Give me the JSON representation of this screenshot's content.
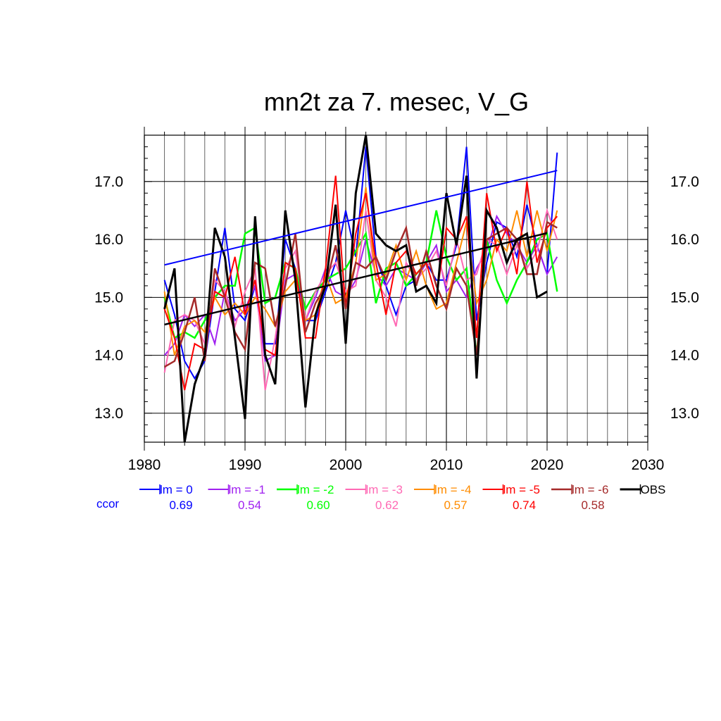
{
  "chart_data": {
    "type": "line",
    "title": "mn2t za 7. mesec, V_G",
    "xlabel": "",
    "ylabel": "",
    "xlim": [
      1980,
      2030
    ],
    "ylim": [
      12.5,
      17.8
    ],
    "x_ticks": [
      1980,
      1990,
      2000,
      2010,
      2020,
      2030
    ],
    "x_tick_labels": [
      "1980",
      "1990",
      "2000",
      "2010",
      "2020",
      "2030"
    ],
    "y_ticks": [
      13.0,
      14.0,
      15.0,
      16.0,
      17.0
    ],
    "y_tick_labels": [
      "13.0",
      "14.0",
      "15.0",
      "16.0",
      "17.0"
    ],
    "grid": true,
    "legend_position": "bottom",
    "ccor_label": "ccor",
    "x": [
      1982,
      1983,
      1984,
      1985,
      1986,
      1987,
      1988,
      1989,
      1990,
      1991,
      1992,
      1993,
      1994,
      1995,
      1996,
      1997,
      1998,
      1999,
      2000,
      2001,
      2002,
      2003,
      2004,
      2005,
      2006,
      2007,
      2008,
      2009,
      2010,
      2011,
      2012,
      2013,
      2014,
      2015,
      2016,
      2017,
      2018,
      2019,
      2020,
      2021
    ],
    "series": [
      {
        "name": "lm = 0",
        "ccor": "0.69",
        "color": "#0000ff",
        "width": 2,
        "values": [
          15.3,
          14.7,
          13.9,
          13.6,
          13.9,
          15.1,
          16.2,
          14.8,
          14.6,
          15.2,
          14.2,
          14.2,
          16.0,
          15.5,
          14.6,
          14.6,
          15.1,
          15.6,
          16.5,
          15.7,
          17.6,
          15.7,
          15.2,
          14.7,
          15.2,
          15.3,
          15.6,
          15.3,
          15.3,
          15.9,
          17.6,
          14.6,
          15.6,
          16.3,
          16.2,
          15.7,
          16.6,
          15.9,
          15.4,
          17.5
        ]
      },
      {
        "name": "lm = -1",
        "ccor": "0.54",
        "color": "#a020f0",
        "width": 2,
        "values": [
          14.0,
          14.2,
          14.7,
          14.5,
          14.7,
          14.2,
          15.1,
          14.6,
          14.8,
          15.2,
          13.9,
          14.0,
          15.3,
          15.4,
          14.6,
          15.0,
          15.5,
          15.1,
          15.0,
          15.3,
          16.0,
          15.4,
          15.2,
          15.5,
          15.4,
          15.3,
          15.6,
          15.9,
          15.1,
          15.3,
          15.0,
          15.5,
          15.8,
          16.4,
          16.1,
          15.9,
          15.6,
          15.9,
          15.4,
          15.7
        ]
      },
      {
        "name": "lm = -2",
        "ccor": "0.60",
        "color": "#00ff00",
        "width": 2.5,
        "values": [
          15.0,
          14.3,
          14.4,
          14.3,
          14.6,
          15.0,
          15.2,
          15.2,
          16.1,
          16.2,
          14.9,
          15.0,
          15.6,
          15.5,
          14.8,
          15.1,
          15.3,
          15.4,
          15.5,
          15.8,
          16.1,
          14.9,
          15.5,
          15.6,
          15.2,
          15.4,
          15.6,
          16.5,
          15.7,
          15.3,
          15.5,
          14.0,
          16.0,
          15.3,
          14.9,
          15.3,
          15.6,
          16.0,
          16.1,
          15.1
        ]
      },
      {
        "name": "lm = -3",
        "ccor": "0.62",
        "color": "#ff69b4",
        "width": 2,
        "values": [
          13.7,
          14.6,
          14.7,
          14.6,
          14.2,
          15.3,
          15.1,
          14.5,
          15.1,
          15.5,
          13.4,
          14.3,
          15.5,
          15.8,
          14.6,
          15.1,
          15.4,
          15.6,
          15.1,
          15.2,
          16.5,
          15.3,
          15.0,
          14.5,
          15.6,
          15.3,
          15.5,
          15.8,
          15.2,
          16.0,
          15.3,
          15.4,
          16.0,
          15.9,
          15.4,
          15.9,
          15.5,
          15.8,
          16.5,
          16.0
        ]
      },
      {
        "name": "lm = -4",
        "ccor": "0.57",
        "color": "#ff8c00",
        "width": 2,
        "values": [
          15.1,
          14.0,
          14.5,
          14.6,
          14.4,
          15.0,
          14.7,
          14.9,
          14.7,
          15.0,
          14.8,
          14.5,
          15.1,
          15.3,
          14.6,
          14.7,
          15.4,
          14.9,
          15.0,
          15.6,
          16.9,
          15.3,
          15.4,
          15.9,
          15.3,
          15.8,
          15.2,
          14.8,
          14.9,
          15.6,
          16.3,
          14.9,
          15.3,
          16.0,
          15.8,
          16.5,
          15.7,
          16.5,
          15.8,
          16.5
        ]
      },
      {
        "name": "lm = -5",
        "ccor": "0.74",
        "color": "#ff0000",
        "width": 2,
        "values": [
          14.8,
          14.3,
          13.4,
          14.2,
          14.1,
          15.1,
          15.0,
          15.7,
          14.7,
          15.3,
          14.1,
          14.0,
          15.6,
          15.5,
          14.3,
          14.3,
          15.5,
          17.1,
          14.8,
          16.1,
          16.8,
          15.6,
          14.7,
          15.6,
          15.8,
          15.4,
          15.6,
          15.0,
          16.2,
          16.0,
          16.4,
          14.3,
          16.8,
          15.8,
          16.2,
          15.4,
          17.0,
          15.6,
          16.2,
          16.4
        ]
      },
      {
        "name": "lm = -6",
        "ccor": "0.58",
        "color": "#a52a2a",
        "width": 2.5,
        "values": [
          13.8,
          13.9,
          14.4,
          15.0,
          13.9,
          15.5,
          15.0,
          14.4,
          14.1,
          15.6,
          15.5,
          14.5,
          15.2,
          16.1,
          14.4,
          14.9,
          15.2,
          15.9,
          14.8,
          15.6,
          15.5,
          15.7,
          15.3,
          15.8,
          16.2,
          15.2,
          15.8,
          15.2,
          14.8,
          15.5,
          15.2,
          14.0,
          16.0,
          16.1,
          16.2,
          16.0,
          15.4,
          15.4,
          16.3,
          16.2
        ]
      },
      {
        "name": "OBS",
        "ccor": "",
        "color": "#000000",
        "width": 3,
        "values": [
          14.8,
          15.5,
          12.5,
          13.5,
          14.0,
          16.2,
          15.7,
          14.3,
          12.9,
          16.4,
          14.0,
          13.5,
          16.5,
          15.3,
          13.1,
          14.7,
          15.2,
          16.6,
          14.2,
          16.8,
          17.8,
          16.1,
          15.9,
          15.8,
          15.9,
          15.1,
          15.2,
          14.9,
          16.8,
          15.9,
          17.1,
          13.6,
          16.5,
          16.2,
          15.6,
          16.0,
          16.1,
          15.0,
          15.1,
          null
        ]
      }
    ],
    "trend_lines": [
      {
        "name": "lm = 0 trend",
        "color": "#0000ff",
        "width": 2,
        "x": [
          1982,
          2021
        ],
        "y": [
          15.56,
          17.19
        ]
      },
      {
        "name": "OBS trend",
        "color": "#000000",
        "width": 2.5,
        "x": [
          1982,
          2020
        ],
        "y": [
          14.53,
          16.11
        ]
      }
    ]
  }
}
